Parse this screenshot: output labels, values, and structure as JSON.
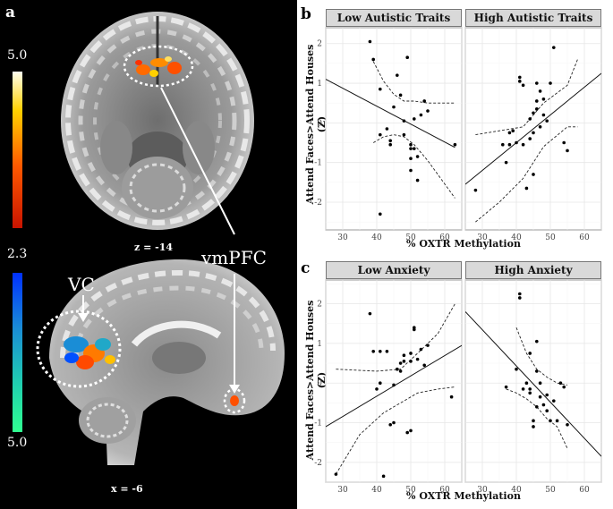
{
  "figure": {
    "panel_a": {
      "letter": "a",
      "colorbar_top": {
        "max": "5.0",
        "min": "2.3",
        "colors": [
          "#fffff0",
          "#ffd000",
          "#ff5a00",
          "#c81400"
        ]
      },
      "colorbar_bottom": {
        "max": "5.0",
        "colors": [
          "#0030ff",
          "#1a8dd6",
          "#20d0b0",
          "#30ff90"
        ]
      },
      "axial": {
        "coord": "z = -14",
        "roi": "vmPFC"
      },
      "sagittal": {
        "coord": "x = -6",
        "roi": "VC"
      }
    },
    "panel_b": {
      "letter": "b",
      "strip_left": "Low Autistic Traits",
      "strip_right": "High Autistic Traits",
      "ylabel": "Attend Faces>Attend Houses (Z)",
      "xlabel": "% OXTR Methylation"
    },
    "panel_c": {
      "letter": "c",
      "strip_left": "Low Anxiety",
      "strip_right": "High Anxiety",
      "ylabel": "Attend Faces>Attend Houses (Z)",
      "xlabel": "% OXTR Methylation"
    }
  },
  "chart_data": [
    {
      "type": "scatter",
      "panel": "b-left",
      "facet": "Low Autistic Traits",
      "xlim": [
        25,
        65
      ],
      "ylim": [
        -2.7,
        2.4
      ],
      "xticks": [
        "30",
        "40",
        "50",
        "60"
      ],
      "yticks": [
        "-2",
        "-1",
        "0",
        "1",
        "2"
      ],
      "x": [
        38,
        39,
        41,
        41,
        43,
        44,
        45,
        46,
        47,
        48,
        48,
        49,
        50,
        50,
        50,
        51,
        51,
        52,
        53,
        54,
        55,
        41,
        44,
        63,
        50,
        52
      ],
      "y": [
        2.05,
        1.6,
        0.85,
        -2.3,
        -0.15,
        -0.45,
        0.4,
        1.2,
        0.7,
        -0.3,
        0.05,
        1.65,
        -0.55,
        -0.65,
        -1.2,
        -0.65,
        0.1,
        -0.85,
        0.2,
        0.55,
        0.3,
        -0.3,
        -0.55,
        -0.55,
        -0.9,
        -1.45
      ],
      "fit": {
        "x": [
          25,
          63
        ],
        "y": [
          1.1,
          -0.62
        ]
      },
      "ci_upper": {
        "x": [
          39,
          42,
          45,
          48,
          51,
          55,
          63
        ],
        "y": [
          1.55,
          1.05,
          0.72,
          0.55,
          0.55,
          0.5,
          0.5
        ]
      },
      "ci_lower": {
        "x": [
          39,
          42,
          45,
          48,
          51,
          55,
          63
        ],
        "y": [
          -0.5,
          -0.35,
          -0.3,
          -0.35,
          -0.55,
          -0.95,
          -1.9
        ]
      }
    },
    {
      "type": "scatter",
      "panel": "b-right",
      "facet": "High Autistic Traits",
      "xlim": [
        25,
        65
      ],
      "ylim": [
        -2.7,
        2.4
      ],
      "xticks": [
        "30",
        "40",
        "50",
        "60"
      ],
      "yticks": [
        "-2",
        "-1",
        "0",
        "1",
        "2"
      ],
      "x": [
        28,
        37,
        38,
        39,
        40,
        41,
        41,
        42,
        43,
        44,
        44,
        45,
        45,
        45,
        46,
        46,
        46,
        47,
        47,
        48,
        48,
        49,
        50,
        51,
        54,
        55,
        42,
        38,
        36
      ],
      "y": [
        -1.7,
        -1.0,
        -0.55,
        -0.2,
        -0.5,
        1.15,
        1.05,
        0.95,
        -1.65,
        -0.4,
        0.1,
        -1.3,
        -0.25,
        0.25,
        0.35,
        0.55,
        1.0,
        0.8,
        -0.1,
        0.6,
        0.2,
        0.05,
        1.0,
        1.9,
        -0.5,
        -0.7,
        -0.55,
        -0.25,
        -0.55
      ],
      "fit": {
        "x": [
          25,
          65
        ],
        "y": [
          -1.55,
          1.25
        ]
      },
      "ci_upper": {
        "x": [
          28,
          35,
          42,
          48,
          55,
          58
        ],
        "y": [
          -0.3,
          -0.2,
          -0.1,
          0.5,
          0.95,
          1.6
        ]
      },
      "ci_lower": {
        "x": [
          28,
          35,
          42,
          48,
          55,
          58
        ],
        "y": [
          -2.5,
          -2.0,
          -1.4,
          -0.6,
          -0.1,
          -0.1
        ]
      }
    },
    {
      "type": "scatter",
      "panel": "c-left",
      "facet": "Low Anxiety",
      "xlim": [
        25,
        65
      ],
      "ylim": [
        -2.5,
        2.6
      ],
      "xticks": [
        "30",
        "40",
        "50",
        "60"
      ],
      "yticks": [
        "-2",
        "-1",
        "0",
        "1",
        "2"
      ],
      "x": [
        28,
        38,
        39,
        40,
        41,
        42,
        43,
        44,
        45,
        46,
        47,
        47,
        48,
        48,
        49,
        50,
        50,
        50,
        51,
        51,
        52,
        53,
        54,
        55,
        41,
        45,
        62
      ],
      "y": [
        -2.3,
        1.75,
        0.8,
        -0.15,
        0.8,
        -2.35,
        0.8,
        -1.05,
        -0.05,
        0.35,
        0.3,
        0.5,
        0.7,
        0.55,
        -1.25,
        0.55,
        0.75,
        -1.2,
        1.35,
        1.4,
        0.6,
        0.85,
        0.45,
        0.95,
        0.0,
        -1.0,
        -0.35
      ],
      "fit": {
        "x": [
          25,
          65
        ],
        "y": [
          -1.1,
          0.95
        ]
      },
      "ci_upper": {
        "x": [
          28,
          40,
          47,
          52,
          58,
          63
        ],
        "y": [
          0.35,
          0.3,
          0.35,
          0.75,
          1.25,
          2.0
        ]
      },
      "ci_lower": {
        "x": [
          28,
          35,
          42,
          47,
          52,
          58,
          63
        ],
        "y": [
          -2.3,
          -1.3,
          -0.75,
          -0.5,
          -0.25,
          -0.15,
          -0.1
        ]
      }
    },
    {
      "type": "scatter",
      "panel": "c-right",
      "facet": "High Anxiety",
      "xlim": [
        25,
        65
      ],
      "ylim": [
        -2.5,
        2.6
      ],
      "xticks": [
        "30",
        "40",
        "50",
        "60"
      ],
      "yticks": [
        "-2",
        "-1",
        "0",
        "1",
        "2"
      ],
      "x": [
        37,
        40,
        41,
        41,
        42,
        43,
        44,
        44,
        45,
        45,
        46,
        46,
        47,
        48,
        49,
        49,
        50,
        51,
        52,
        53,
        54,
        55,
        46,
        47,
        44
      ],
      "y": [
        -0.1,
        0.35,
        2.15,
        2.25,
        -0.15,
        0.0,
        -0.25,
        0.75,
        -0.95,
        -1.1,
        1.05,
        0.3,
        0.0,
        -0.55,
        -0.3,
        -0.7,
        -0.95,
        -0.45,
        -0.95,
        0.0,
        -0.1,
        -1.05,
        -0.6,
        -0.35,
        -0.15
      ],
      "fit": {
        "x": [
          25,
          65
        ],
        "y": [
          1.8,
          -1.85
        ]
      },
      "ci_upper": {
        "x": [
          40,
          43,
          46,
          49,
          52,
          55
        ],
        "y": [
          1.4,
          0.75,
          0.35,
          0.15,
          0.0,
          -0.05
        ]
      },
      "ci_lower": {
        "x": [
          37,
          40,
          43,
          46,
          49,
          52,
          55
        ],
        "y": [
          -0.15,
          -0.25,
          -0.4,
          -0.6,
          -0.9,
          -1.1,
          -1.65
        ]
      }
    }
  ]
}
